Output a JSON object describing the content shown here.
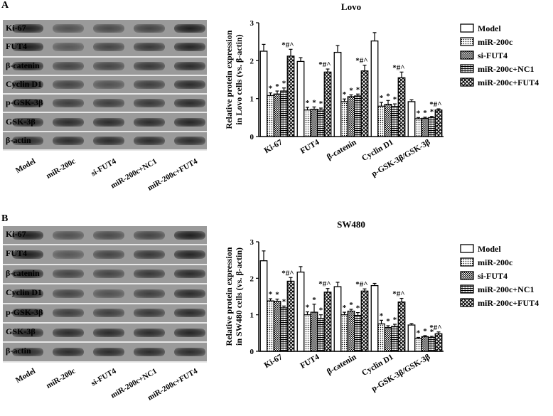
{
  "panels": [
    {
      "letter": "A",
      "blot_rows": [
        "Ki-67",
        "FUT4",
        "β-catenin",
        "Cyclin D1",
        "p-GSK-3β",
        "GSK-3β",
        "β-actin"
      ],
      "lanes": [
        "Model",
        "miR-200c",
        "si-FUT4",
        "miR-200c+NC1",
        "miR-200c+FUT4"
      ]
    },
    {
      "letter": "B",
      "blot_rows": [
        "Ki-67",
        "FUT4",
        "β-catenin",
        "Cyclin D1",
        "p-GSK-3β",
        "GSK-3β",
        "β-actin"
      ],
      "lanes": [
        "Model",
        "miR-200c",
        "si-FUT4",
        "miR-200c+NC1",
        "miR-200c+FUT4"
      ]
    }
  ],
  "chart_data": [
    {
      "type": "bar",
      "title": "Lovo",
      "ylabel_line1": "Relative protein expression",
      "ylabel_line2": "in Lovo cells (vs. β-actin)",
      "ylim": [
        0,
        3
      ],
      "yticks": [
        "0",
        "1",
        "2",
        "3"
      ],
      "categories": [
        "Ki-67",
        "FUT4",
        "β-catenin",
        "Cyclin D1",
        "p-GSK-3β/GSK-3β"
      ],
      "series": [
        {
          "name": "Model",
          "values": [
            2.25,
            1.98,
            2.22,
            2.52,
            0.92
          ],
          "errors": [
            0.18,
            0.1,
            0.18,
            0.22,
            0.05
          ]
        },
        {
          "name": "miR-200c",
          "values": [
            1.08,
            0.7,
            0.92,
            0.8,
            0.47
          ],
          "errors": [
            0.07,
            0.07,
            0.07,
            0.1,
            0.03
          ]
        },
        {
          "name": "si-FUT4",
          "values": [
            1.12,
            0.72,
            1.05,
            0.85,
            0.48
          ],
          "errors": [
            0.08,
            0.06,
            0.05,
            0.1,
            0.03
          ]
        },
        {
          "name": "miR-200c+NC1",
          "values": [
            1.2,
            0.7,
            1.07,
            0.79,
            0.5
          ],
          "errors": [
            0.08,
            0.05,
            0.05,
            0.07,
            0.03
          ]
        },
        {
          "name": "miR-200c+FUT4",
          "values": [
            2.12,
            1.7,
            1.73,
            1.55,
            0.7
          ],
          "errors": [
            0.18,
            0.08,
            0.15,
            0.15,
            0.03
          ]
        }
      ],
      "annotations": {
        "model": "",
        "single": "*",
        "fut4": "*#^"
      }
    },
    {
      "type": "bar",
      "title": "SW480",
      "ylabel_line1": "Relative protein expression",
      "ylabel_line2": "in SW480 cells (vs. β-actin)",
      "ylim": [
        0,
        3
      ],
      "yticks": [
        "0",
        "1",
        "2",
        "3"
      ],
      "categories": [
        "Ki-67",
        "FUT4",
        "β-catenin",
        "Cyclin D1",
        "p-GSK-3β/GSK-3β"
      ],
      "series": [
        {
          "name": "Model",
          "values": [
            2.48,
            2.17,
            1.77,
            1.8,
            0.72
          ],
          "errors": [
            0.27,
            0.15,
            0.12,
            0.06,
            0.04
          ]
        },
        {
          "name": "miR-200c",
          "values": [
            1.38,
            1.0,
            1.0,
            0.75,
            0.35
          ],
          "errors": [
            0.06,
            0.08,
            0.07,
            0.1,
            0.03
          ]
        },
        {
          "name": "si-FUT4",
          "values": [
            1.37,
            1.07,
            1.1,
            0.65,
            0.4
          ],
          "errors": [
            0.06,
            0.22,
            0.05,
            0.05,
            0.03
          ]
        },
        {
          "name": "miR-200c+NC1",
          "values": [
            1.19,
            0.9,
            0.98,
            0.68,
            0.38
          ],
          "errors": [
            0.05,
            0.1,
            0.08,
            0.06,
            0.03
          ]
        },
        {
          "name": "miR-200c+FUT4",
          "values": [
            1.92,
            1.62,
            1.65,
            1.35,
            0.48
          ],
          "errors": [
            0.1,
            0.1,
            0.06,
            0.1,
            0.05
          ]
        }
      ],
      "annotations": {
        "model": "",
        "single": "*",
        "fut4": "*#^"
      }
    }
  ]
}
